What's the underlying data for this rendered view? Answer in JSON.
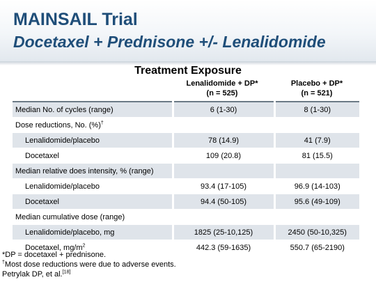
{
  "header": {
    "title": "MAINSAIL Trial",
    "subtitle": "Docetaxel + Prednisone +/- Lenalidomide"
  },
  "table": {
    "title": "Treatment Exposure",
    "columns": [
      {
        "line1": "Lenalidomide + DP*",
        "line2": "(n = 525)"
      },
      {
        "line1": "Placebo + DP*",
        "line2": "(n = 521)"
      }
    ],
    "rows": [
      {
        "label": "Median No. of cycles (range)",
        "sup": "",
        "v1": "6 (1-30)",
        "v2": "8 (1-30)"
      },
      {
        "label": "Dose reductions, No. (%)",
        "sup": "†",
        "v1": "",
        "v2": ""
      },
      {
        "label": "Lenalidomide/placebo",
        "sup": "",
        "v1": "78 (14.9)",
        "v2": "41 (7.9)"
      },
      {
        "label": "Docetaxel",
        "sup": "",
        "v1": "109 (20.8)",
        "v2": "81 (15.5)"
      },
      {
        "label": "Median relative does intensity, % (range)",
        "sup": "",
        "v1": "",
        "v2": ""
      },
      {
        "label": "Lenalidomide/placebo",
        "sup": "",
        "v1": "93.4 (17-105)",
        "v2": "96.9 (14-103)"
      },
      {
        "label": "Docetaxel",
        "sup": "",
        "v1": "94.4 (50-105)",
        "v2": "95.6 (49-109)"
      },
      {
        "label": "Median cumulative dose (range)",
        "sup": "",
        "v1": "",
        "v2": ""
      },
      {
        "label": "Lenalidomide/placebo, mg",
        "sup": "",
        "v1": "1825 (25-10,125)",
        "v2": "2450 (50-10,325)"
      },
      {
        "label": "Docetaxel, mg/m",
        "sup": "2",
        "v1": "442.3 (59-1635)",
        "v2": "550.7 (65-2190)"
      }
    ]
  },
  "footnotes": {
    "dp": "*DP = docetaxel + prednisone.",
    "dagger_mark": "†",
    "dagger_text": "Most dose reductions were due to adverse events.",
    "citation": "Petrylak DP, et al.",
    "citation_ref": "[18]"
  },
  "colors": {
    "title": "#1f4e79",
    "row_shade": "#dfe4ea",
    "rule": "#6c7a86"
  }
}
